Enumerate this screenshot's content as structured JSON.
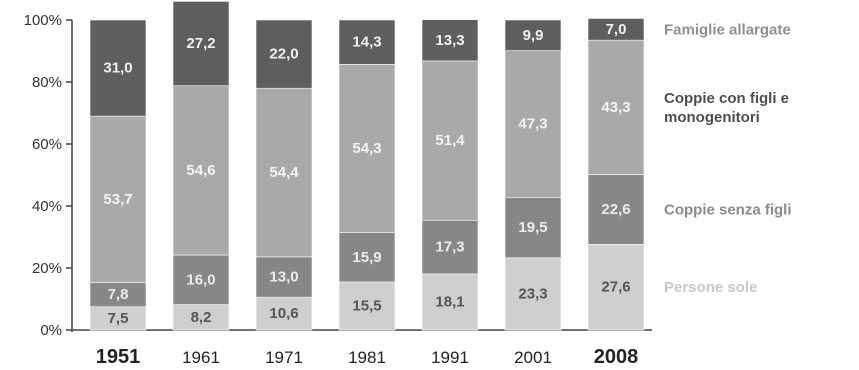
{
  "chart_data": {
    "type": "bar",
    "stacked": true,
    "categories": [
      "1951",
      "1961",
      "1971",
      "1981",
      "1991",
      "2001",
      "2008"
    ],
    "emphasized_categories": [
      "1951",
      "2008"
    ],
    "series": [
      {
        "name": "Persone sole",
        "values": [
          7.5,
          8.2,
          10.6,
          15.5,
          18.1,
          23.3,
          27.6
        ],
        "labels": [
          "7,5",
          "8,2",
          "10,6",
          "15,5",
          "18,1",
          "23,3",
          "27,6"
        ],
        "color": "#cfcfcf",
        "label_color": "#555555",
        "legend_color": "#c8c8c8"
      },
      {
        "name": "Coppie senza figli",
        "values": [
          7.8,
          16.0,
          13.0,
          15.9,
          17.3,
          19.5,
          22.6
        ],
        "labels": [
          "7,8",
          "16,0",
          "13,0",
          "15,9",
          "17,3",
          "19,5",
          "22,6"
        ],
        "color": "#878787",
        "label_color": "#ececec",
        "legend_color": "#8a8a8a"
      },
      {
        "name": "Coppie con figli e monogenitori",
        "values": [
          53.7,
          54.6,
          54.4,
          54.3,
          51.4,
          47.3,
          43.3
        ],
        "labels": [
          "53,7",
          "54,6",
          "54,4",
          "54,3",
          "51,4",
          "47,3",
          "43,3"
        ],
        "color": "#a9a9a9",
        "label_color": "#f5f5f5",
        "legend_color": "#4f4f4f"
      },
      {
        "name": "Famiglie allargate",
        "values": [
          31.0,
          27.2,
          22.0,
          14.3,
          13.3,
          9.9,
          7.0
        ],
        "labels": [
          "31,0",
          "27,2",
          "22,0",
          "14,3",
          "13,3",
          "9,9",
          "7,0"
        ],
        "color": "#5e5e5e",
        "label_color": "#f0f0f0",
        "legend_color": "#8f8f8f"
      }
    ],
    "y_ticks": [
      "0%",
      "20%",
      "40%",
      "60%",
      "80%",
      "100%"
    ],
    "ylim": [
      0,
      100
    ],
    "grid": false,
    "legend": "right",
    "title": "",
    "xlabel": "",
    "ylabel": ""
  }
}
